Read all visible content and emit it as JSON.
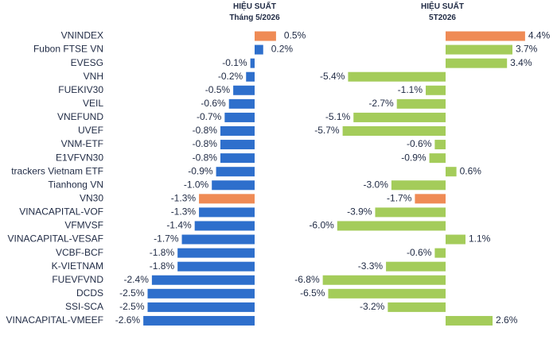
{
  "headers": {
    "left": {
      "line1": "HIỆU SUẤT",
      "line2": "Tháng 5/2026"
    },
    "right": {
      "line1": "HIỆU SUẤT",
      "line2": "5T2026"
    }
  },
  "colors": {
    "blue": "#2e6fcc",
    "orange": "#ef8b55",
    "green": "#a4cc5a",
    "label": "#1f2a44"
  },
  "chart_data": [
    {
      "type": "bar",
      "orientation": "horizontal",
      "title": "HIỆU SUẤT Tháng 5/2026",
      "categories": [
        "VNINDEX",
        "Fubon FTSE VN",
        "EVESG",
        "VNH",
        "FUEKIV30",
        "VEIL",
        "VNEFUND",
        "UVEF",
        "VNM-ETF",
        "E1VFVN30",
        "trackers Vietnam ETF",
        "Tianhong VN",
        "VN30",
        "VINACAPITAL-VOF",
        "VFMVSF",
        "VINACAPITAL-VESAF",
        "VCBF-BCF",
        "K-VIETNAM",
        "FUEVFVND",
        "DCDS",
        "SSI-SCA",
        "VINACAPITAL-VMEEF"
      ],
      "values": [
        0.5,
        0.2,
        -0.1,
        -0.2,
        -0.5,
        -0.6,
        -0.7,
        -0.8,
        -0.8,
        -0.8,
        -0.9,
        -1.0,
        -1.3,
        -1.3,
        -1.4,
        -1.7,
        -1.8,
        -1.8,
        -2.4,
        -2.5,
        -2.5,
        -2.6
      ],
      "labels": [
        "0.5%",
        "0.2%",
        "-0.1%",
        "-0.2%",
        "-0.5%",
        "-0.6%",
        "-0.7%",
        "-0.8%",
        "-0.8%",
        "-0.8%",
        "-0.9%",
        "-1.0%",
        "-1.3%",
        "-1.3%",
        "-1.4%",
        "-1.7%",
        "-1.8%",
        "-1.8%",
        "-2.4%",
        "-2.5%",
        "-2.5%",
        "-2.6%"
      ],
      "highlight": [
        0,
        12
      ]
    },
    {
      "type": "bar",
      "orientation": "horizontal",
      "title": "HIỆU SUẤT 5T2026",
      "values": [
        4.4,
        3.7,
        3.4,
        -5.4,
        -1.1,
        -2.7,
        -5.1,
        -5.7,
        -0.6,
        -0.9,
        0.6,
        -3.0,
        -1.7,
        -3.9,
        -6.0,
        1.1,
        -0.6,
        -3.3,
        -6.8,
        -6.5,
        -3.2,
        2.6
      ],
      "labels": [
        "4.4%",
        "3.7%",
        "3.4%",
        "-5.4%",
        "-1.1%",
        "-2.7%",
        "-5.1%",
        "-5.7%",
        "-0.6%",
        "-0.9%",
        "0.6%",
        "-3.0%",
        "-1.7%",
        "-3.9%",
        "-6.0%",
        "1.1%",
        "-0.6%",
        "-3.3%",
        "-6.8%",
        "-6.5%",
        "-3.2%",
        "2.6%"
      ],
      "highlight": [
        0,
        12
      ]
    }
  ]
}
